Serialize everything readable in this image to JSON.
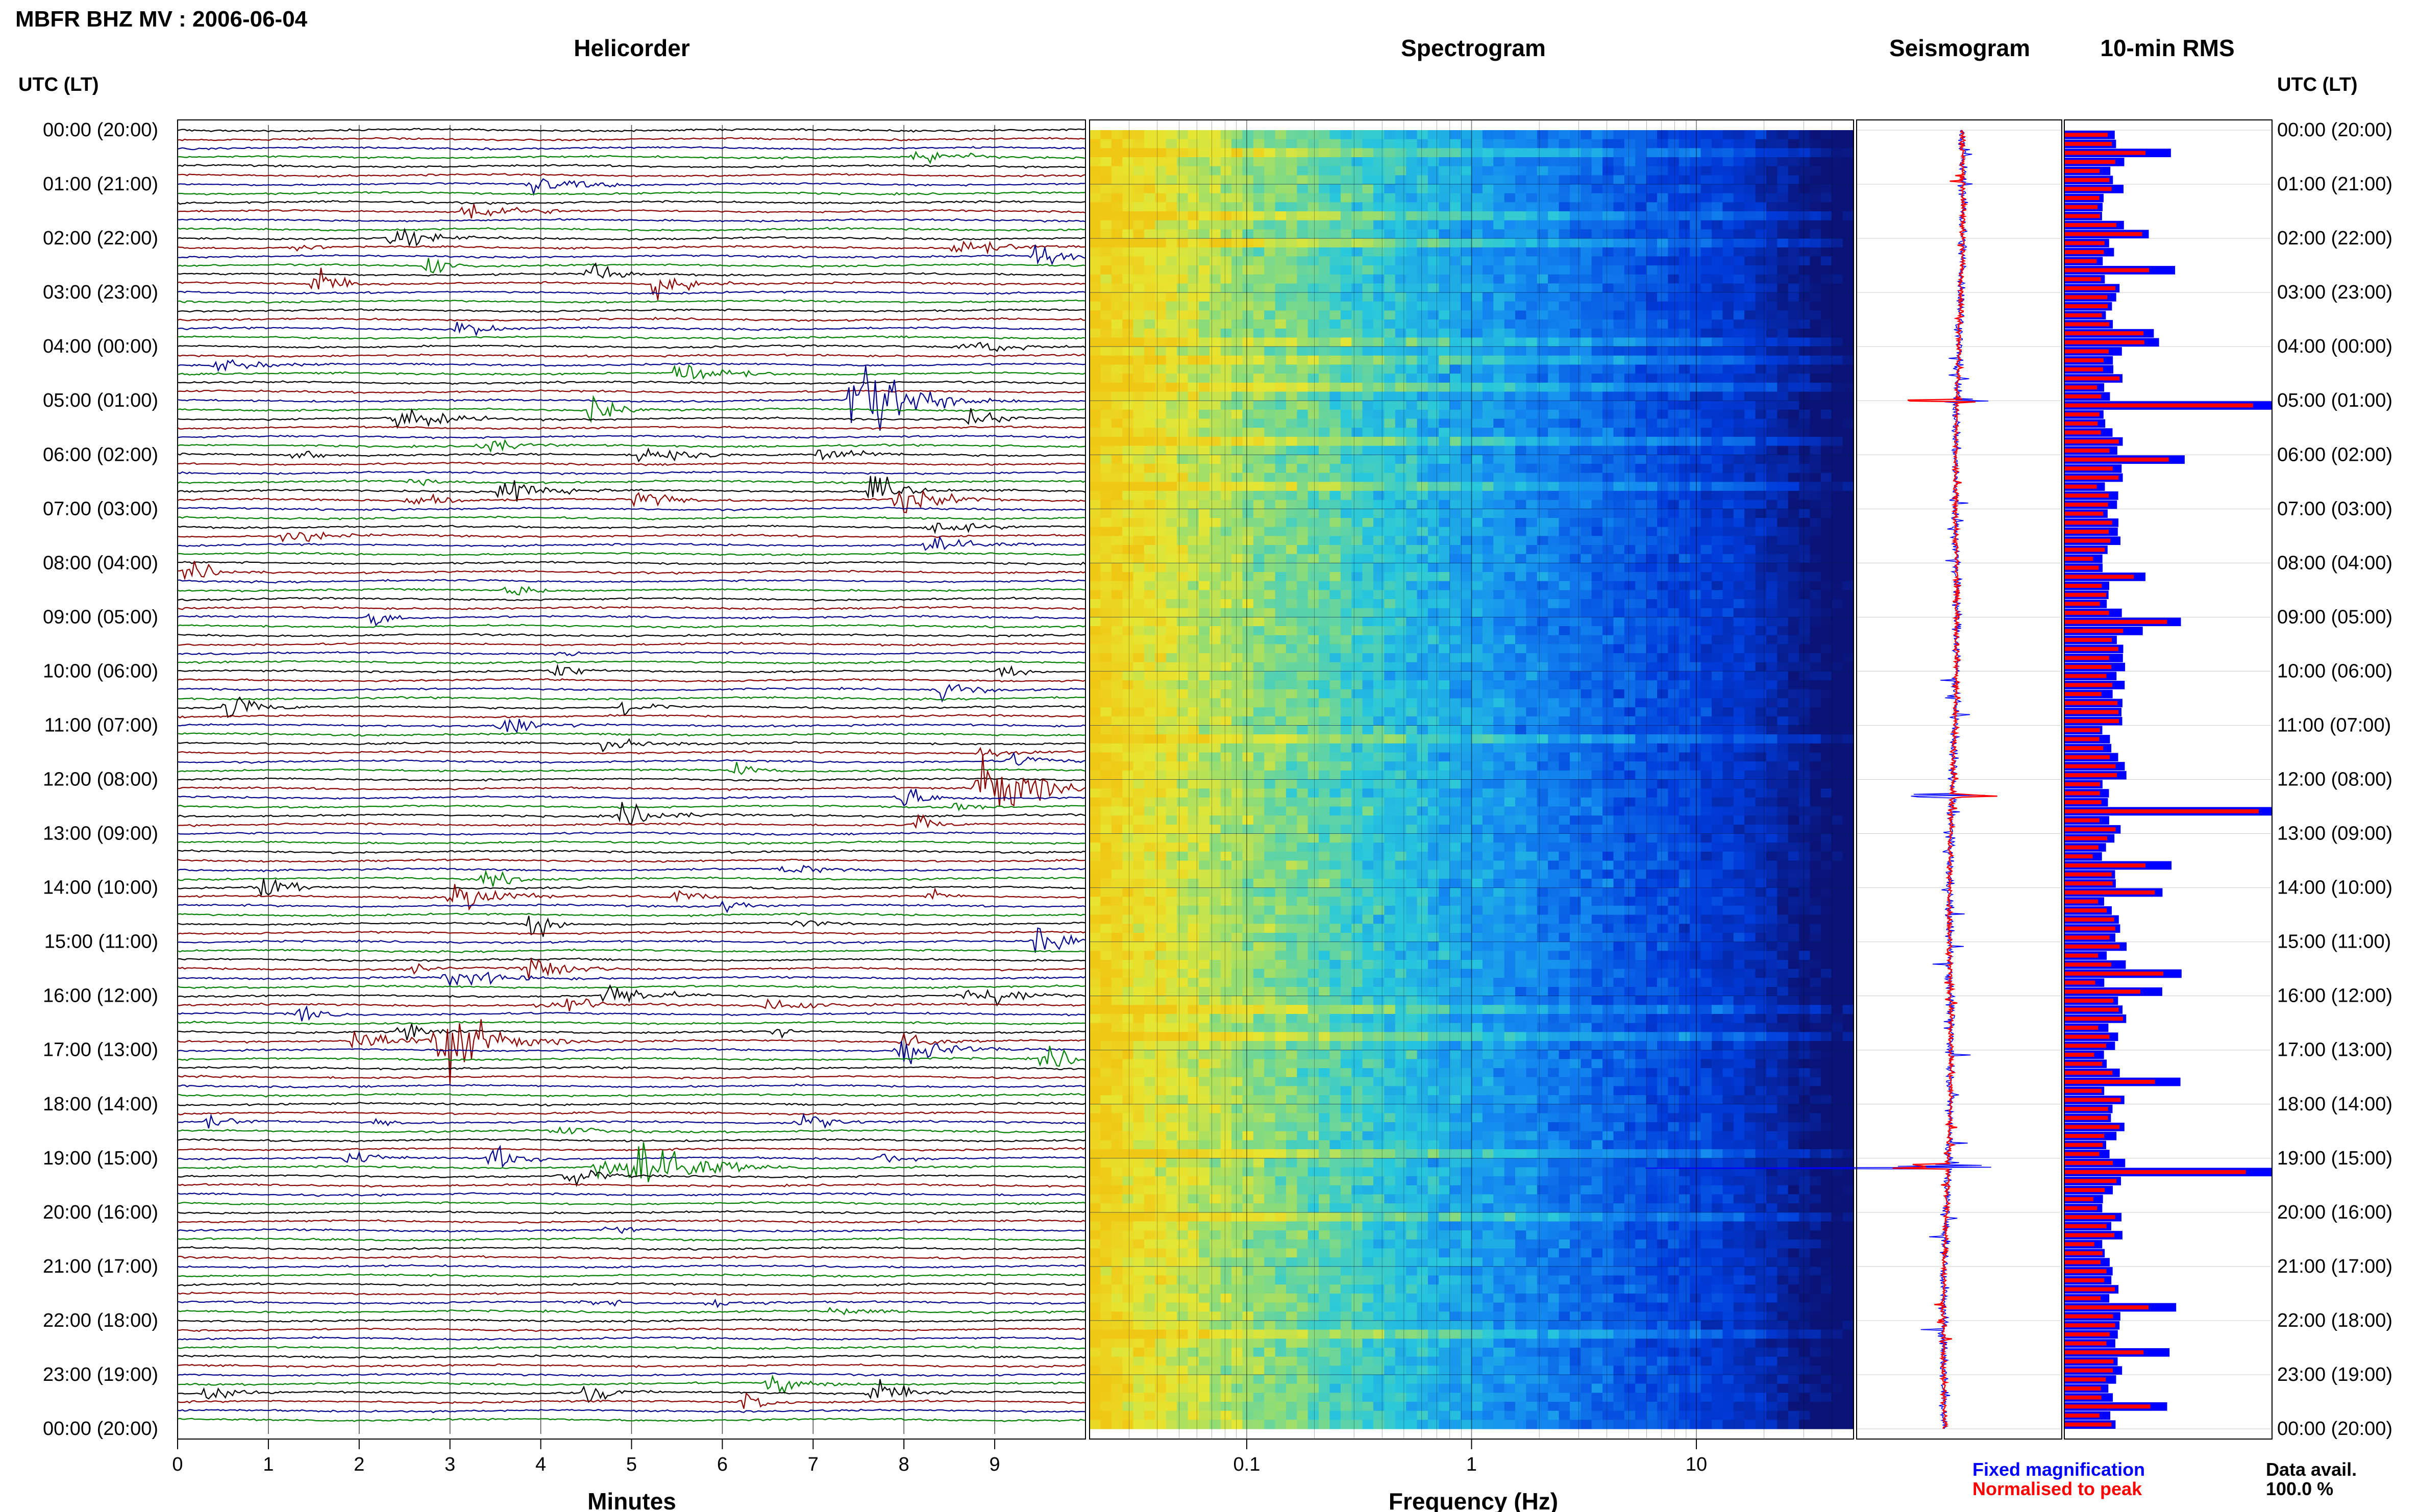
{
  "title": "MBFR BHZ MV : 2006-06-04",
  "panels": {
    "helicorder": "Helicorder",
    "spectrogram": "Spectrogram",
    "seismogram": "Seismogram",
    "rms": "10-min RMS"
  },
  "left_axis_title": "UTC (LT)",
  "right_axis_title": "UTC (LT)",
  "time_labels": [
    "00:00 (20:00)",
    "01:00 (21:00)",
    "02:00 (22:00)",
    "03:00 (23:00)",
    "04:00 (00:00)",
    "05:00 (01:00)",
    "06:00 (02:00)",
    "07:00 (03:00)",
    "08:00 (04:00)",
    "09:00 (05:00)",
    "10:00 (06:00)",
    "11:00 (07:00)",
    "12:00 (08:00)",
    "13:00 (09:00)",
    "14:00 (10:00)",
    "15:00 (11:00)",
    "16:00 (12:00)",
    "17:00 (13:00)",
    "18:00 (14:00)",
    "19:00 (15:00)",
    "20:00 (16:00)",
    "21:00 (17:00)",
    "22:00 (18:00)",
    "23:00 (19:00)",
    "00:00 (20:00)"
  ],
  "helicorder": {
    "xlabel": "Minutes",
    "xticks": [
      "0",
      "1",
      "2",
      "3",
      "4",
      "5",
      "6",
      "7",
      "8",
      "9"
    ],
    "trace_colors": [
      "#000000",
      "#8b0000",
      "#00008b",
      "#008000"
    ]
  },
  "spectrogram": {
    "xlabel": "Frequency (Hz)",
    "xticks": [
      "0.1",
      "1",
      "10"
    ]
  },
  "legend": {
    "fixed": "Fixed magnification",
    "normalised": "Normalised to peak",
    "fixed_color": "#0000ff",
    "normalised_color": "#ff0000"
  },
  "data_avail": {
    "label": "Data avail.",
    "value": "100.0 %"
  },
  "chart_data": [
    {
      "type": "line",
      "title": "Helicorder",
      "xlabel": "Minutes",
      "xlim": [
        0,
        10
      ],
      "rows": 144,
      "row_minutes": 10,
      "notable_events": [
        {
          "time_utc": "05:00",
          "minute": 7.4,
          "color": "dark red"
        },
        {
          "time_utc": "12:10",
          "minute": 8.8,
          "color": "dark blue"
        },
        {
          "time_utc": "16:50",
          "minute": 2.8,
          "color": "black"
        },
        {
          "time_utc": "19:10",
          "minute": 5.0,
          "color": "black"
        }
      ]
    },
    {
      "type": "heatmap",
      "title": "Spectrogram",
      "xlabel": "Frequency (Hz)",
      "xscale": "log",
      "xlim": [
        0.02,
        50
      ],
      "ylim_utc": [
        "00:00",
        "24:00"
      ]
    },
    {
      "type": "bar",
      "title": "10-min RMS",
      "orientation": "horizontal",
      "bin_minutes": 10,
      "spikes_utc": [
        "05:00",
        "12:30",
        "19:10"
      ],
      "series": [
        {
          "name": "Fixed magnification",
          "color": "#0000ff"
        },
        {
          "name": "Normalised to peak",
          "color": "#ff0000"
        }
      ]
    }
  ]
}
